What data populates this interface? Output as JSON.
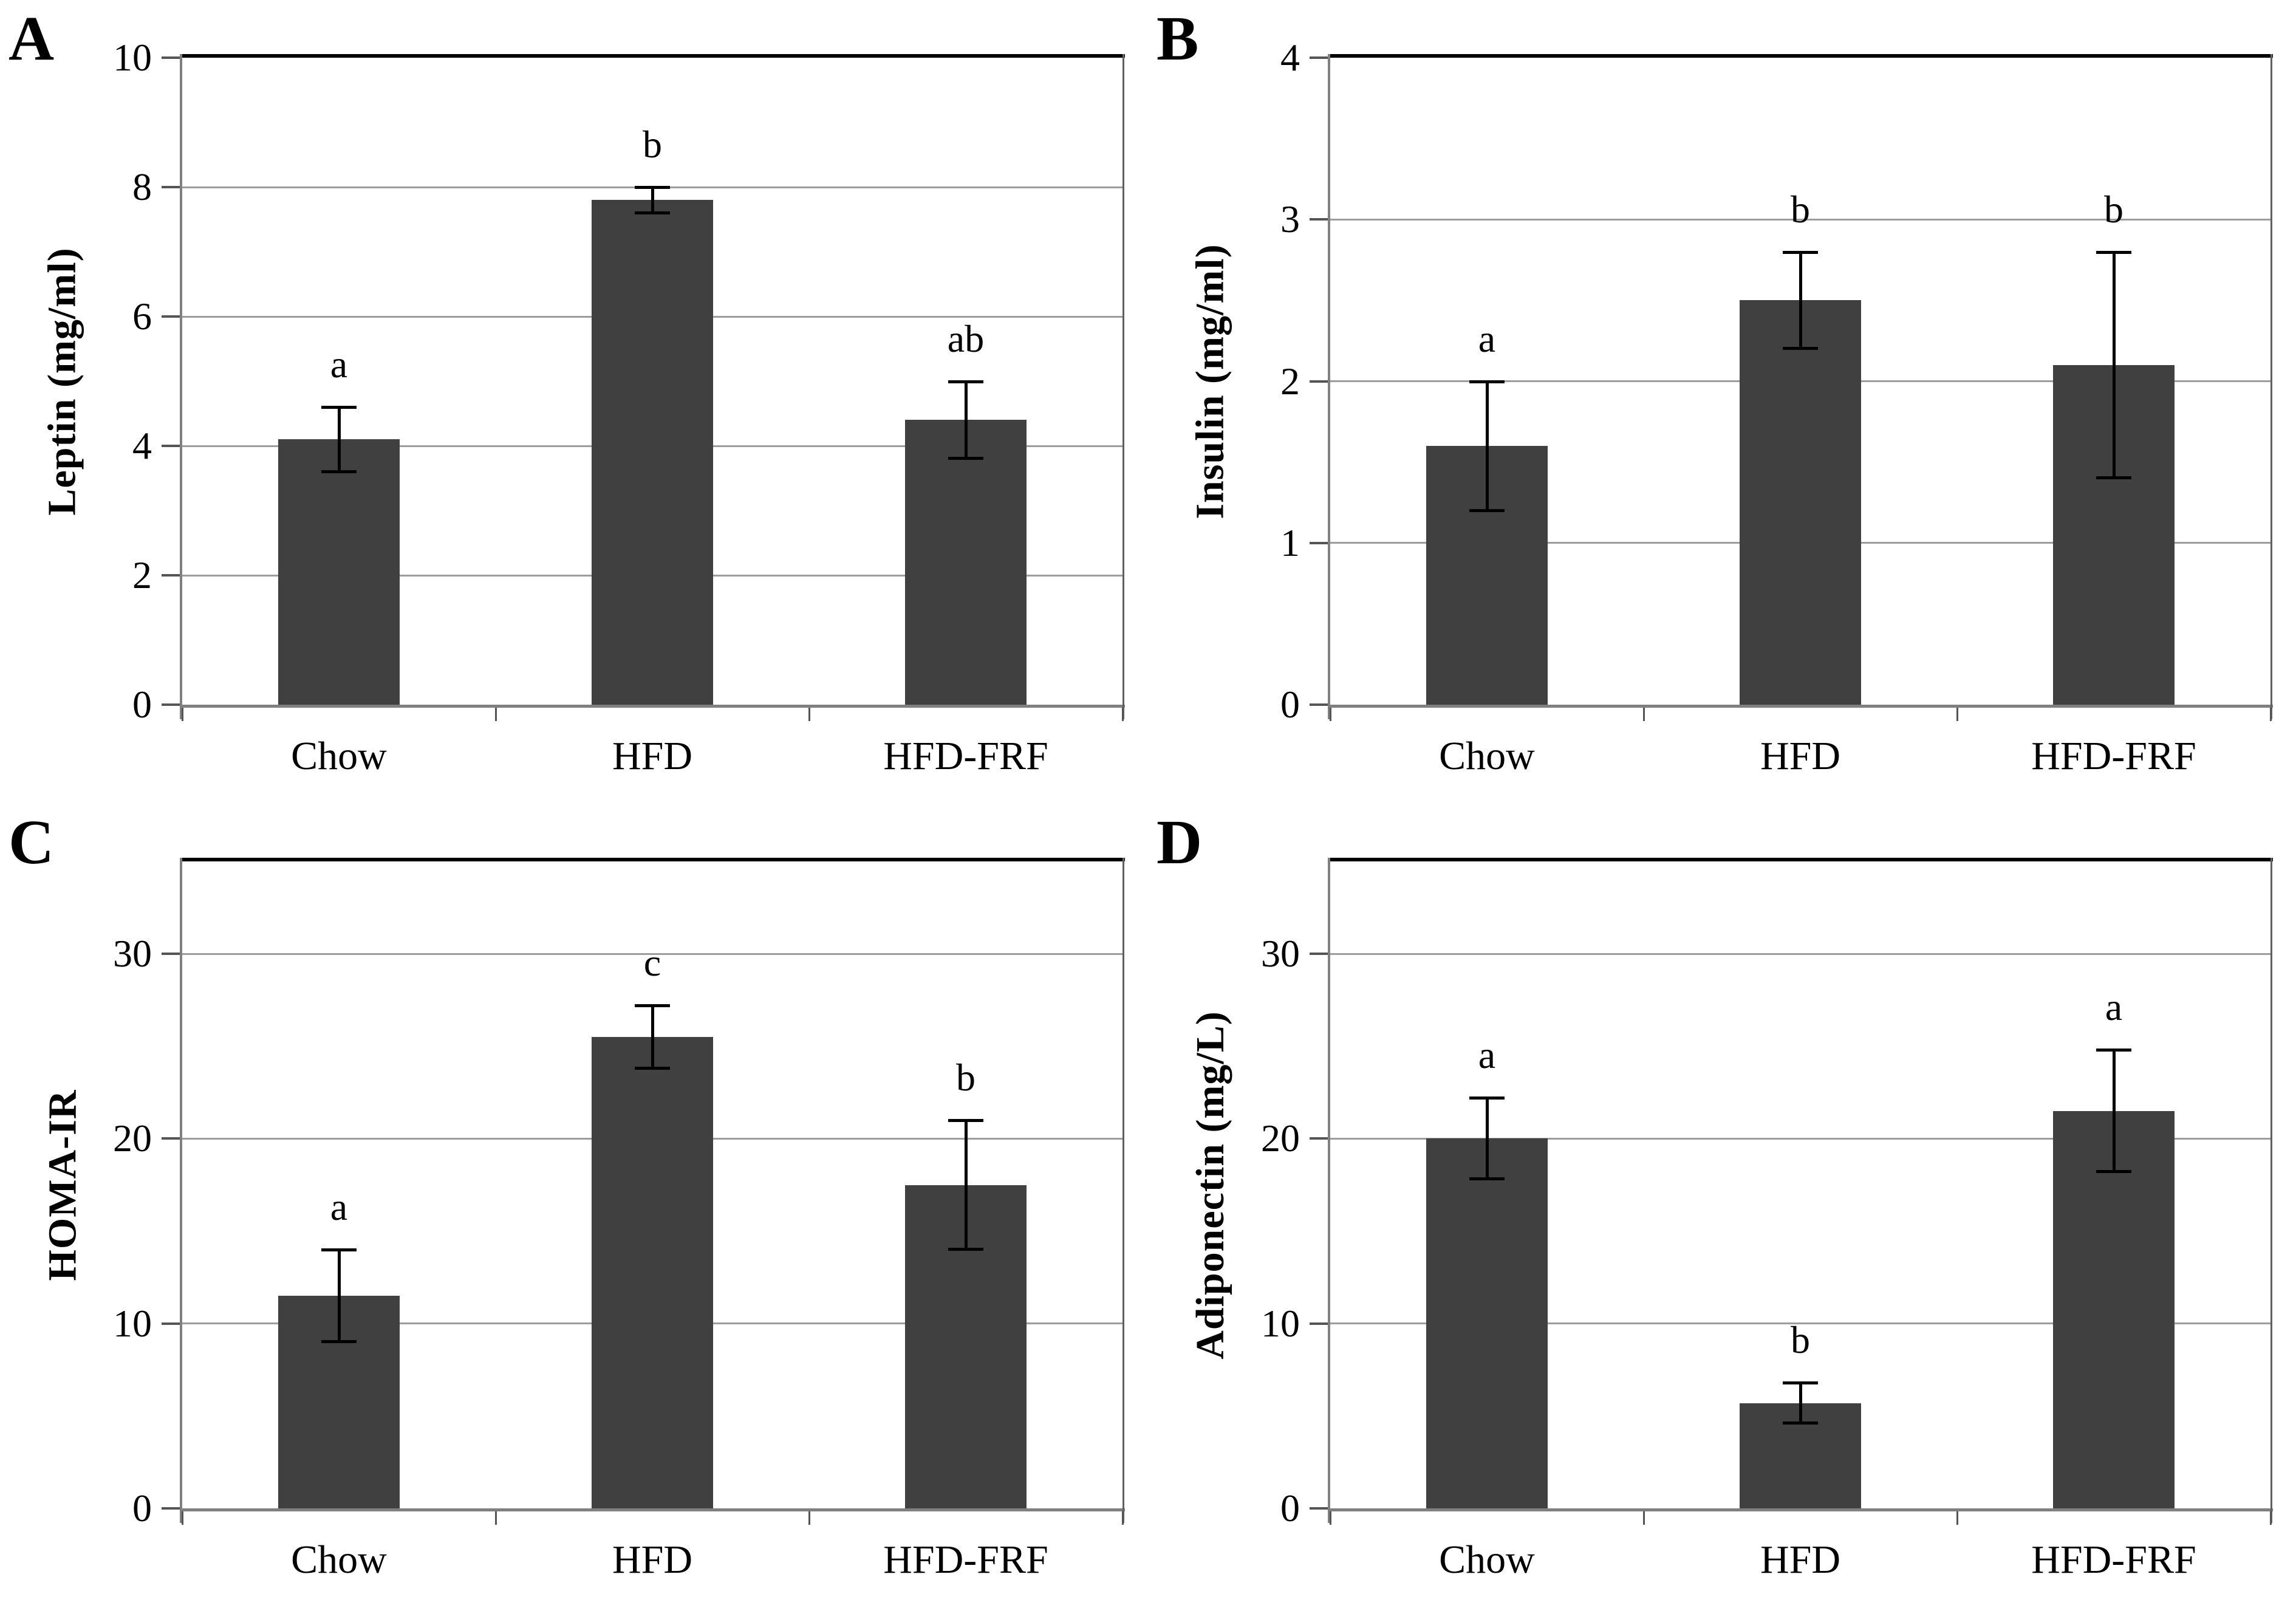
{
  "colors": {
    "bar": "#404040",
    "gridline": "#9d9d9d",
    "axis": "#808080",
    "right_border": "#606060",
    "top_border": "#000000",
    "tick_mark": "#555555",
    "error_bar": "#000000",
    "text": "#000000",
    "background": "#ffffff"
  },
  "chart_data": [
    {
      "type": "bar",
      "panel_letter": "A",
      "title": "",
      "xlabel": "",
      "ylabel": "Leptin  (mg/ml)",
      "categories": [
        "Chow",
        "HFD",
        "HFD-FRF"
      ],
      "values": [
        4.1,
        7.8,
        4.4
      ],
      "errors": [
        0.5,
        0.2,
        0.6
      ],
      "sig_letters": [
        "a",
        "b",
        "ab"
      ],
      "ylim": [
        0,
        10
      ],
      "yticks": [
        0,
        2,
        4,
        6,
        8,
        10
      ],
      "grid": true,
      "legend": "none"
    },
    {
      "type": "bar",
      "panel_letter": "B",
      "title": "",
      "xlabel": "",
      "ylabel": "Insulin  (mg/ml)",
      "categories": [
        "Chow",
        "HFD",
        "HFD-FRF"
      ],
      "values": [
        1.6,
        2.5,
        2.1
      ],
      "errors": [
        0.4,
        0.3,
        0.7
      ],
      "sig_letters": [
        "a",
        "b",
        "b"
      ],
      "ylim": [
        0,
        4
      ],
      "yticks": [
        0,
        1,
        2,
        3,
        4
      ],
      "grid": true,
      "legend": "none"
    },
    {
      "type": "bar",
      "panel_letter": "C",
      "title": "",
      "xlabel": "",
      "ylabel": "HOMA-IR",
      "categories": [
        "Chow",
        "HFD",
        "HFD-FRF"
      ],
      "values": [
        11.5,
        25.5,
        17.5
      ],
      "errors": [
        2.5,
        1.7,
        3.5
      ],
      "sig_letters": [
        "a",
        "c",
        "b"
      ],
      "ylim": [
        0,
        35
      ],
      "yticks": [
        0,
        10,
        20,
        30
      ],
      "grid": true,
      "legend": "none"
    },
    {
      "type": "bar",
      "panel_letter": "D",
      "title": "",
      "xlabel": "",
      "ylabel": "Adiponectin  (mg/L)",
      "categories": [
        "Chow",
        "HFD",
        "HFD-FRF"
      ],
      "values": [
        20.0,
        5.7,
        21.5
      ],
      "errors": [
        2.2,
        1.1,
        3.3
      ],
      "sig_letters": [
        "a",
        "b",
        "a"
      ],
      "ylim": [
        0,
        35
      ],
      "yticks": [
        0,
        10,
        20,
        30
      ],
      "grid": true,
      "legend": "none"
    }
  ]
}
